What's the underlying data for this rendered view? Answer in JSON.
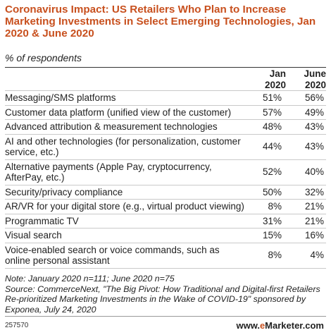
{
  "chart_data": {
    "type": "table",
    "title": "Coronavirus Impact: US Retailers Who Plan to Increase Marketing Investments in Select Emerging Technologies, Jan 2020 & June 2020",
    "subtitle": "% of respondents",
    "columns": [
      "Jan 2020",
      "June 2020"
    ],
    "rows": [
      {
        "label": "Messaging/SMS platforms",
        "jan": "51%",
        "june": "56%"
      },
      {
        "label": "Customer data platform (unified view of the customer)",
        "jan": "57%",
        "june": "49%"
      },
      {
        "label": "Advanced attribution & measurement technologies",
        "jan": "48%",
        "june": "43%"
      },
      {
        "label": "AI and other technologies (for personalization, customer service, etc.)",
        "jan": "44%",
        "june": "43%"
      },
      {
        "label": "Alternative payments (Apple Pay, cryptocurrency, AfterPay, etc.)",
        "jan": "52%",
        "june": "40%"
      },
      {
        "label": "Security/privacy compliance",
        "jan": "50%",
        "june": "32%"
      },
      {
        "label": "AR/VR for your digital store (e.g., virtual product viewing)",
        "jan": "8%",
        "june": "21%"
      },
      {
        "label": "Programmatic TV",
        "jan": "31%",
        "june": "21%"
      },
      {
        "label": "Visual search",
        "jan": "15%",
        "june": "16%"
      },
      {
        "label": "Voice-enabled search or voice commands, such as online personal assistant",
        "jan": "8%",
        "june": "4%"
      }
    ],
    "note": "Note: January 2020 n=111; June 2020 n=75",
    "source": "Source: CommerceNext, \"The Big Pivot: How Traditional and Digital-first Retailers Re-prioritized Marketing Investments in the Wake of COVID-19\" sponsored by Exponea, July 24, 2020"
  },
  "header": {
    "col_jan_line1": "Jan",
    "col_jan_line2": "2020",
    "col_jun_line1": "June",
    "col_jun_line2": "2020"
  },
  "footer": {
    "chart_id": "257570",
    "brand_prefix": "www.",
    "brand_e": "e",
    "brand_rest": "Marketer.com"
  },
  "colors": {
    "title": "#c8501e",
    "rule": "#c9c9c9"
  }
}
